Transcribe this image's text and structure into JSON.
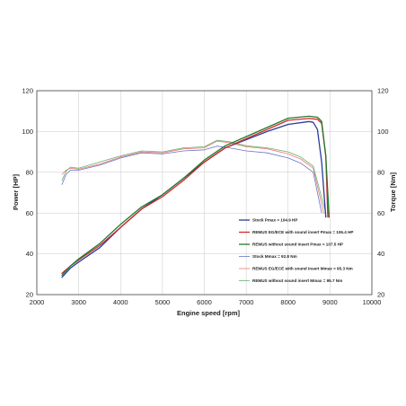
{
  "chart_data": {
    "type": "line",
    "xlabel": "Engine speed [rpm]",
    "ylabel_left": "Power [HP]",
    "ylabel_right": "Torque [Nm]",
    "xlim": [
      2000,
      10000
    ],
    "ylim": [
      20,
      120
    ],
    "x_ticks": [
      2000,
      3000,
      4000,
      5000,
      6000,
      7000,
      8000,
      9000,
      10000
    ],
    "y_ticks": [
      20,
      40,
      60,
      80,
      100,
      120
    ],
    "y2_ticks": [
      20,
      40,
      60,
      80,
      100,
      120
    ],
    "grid": true,
    "legend_position": "lower-right inside plot",
    "series": [
      {
        "name": "Stock Pmax = 104.9 HP",
        "color": "#2a3c9c",
        "kind": "power",
        "x": [
          2600,
          2800,
          3000,
          3500,
          4000,
          4500,
          5000,
          5500,
          6000,
          6500,
          7000,
          7500,
          8000,
          8500,
          8600,
          8700,
          8800,
          8900
        ],
        "y": [
          28.5,
          33,
          36,
          43,
          53,
          62,
          69,
          77,
          85,
          92,
          96,
          100,
          103.5,
          104.9,
          104.5,
          101,
          85,
          58
        ]
      },
      {
        "name": "REMUS EG/ECE with sound insert Pmax = 106.4 HP",
        "color": "#d42a2a",
        "kind": "power",
        "x": [
          2600,
          2800,
          3000,
          3500,
          4000,
          4500,
          5000,
          5500,
          6000,
          6500,
          7000,
          7500,
          8000,
          8500,
          8700,
          8800,
          8900,
          8950
        ],
        "y": [
          30.5,
          34,
          37,
          44,
          53,
          62,
          68,
          76,
          85,
          92,
          96.5,
          101,
          105.5,
          106.4,
          106,
          104,
          88,
          58
        ]
      },
      {
        "name": "REMUS without sound insert Pmax = 107.5 HP",
        "color": "#1f7a2c",
        "kind": "power",
        "x": [
          2600,
          2800,
          3000,
          3500,
          4000,
          4500,
          5000,
          5500,
          6000,
          6500,
          7000,
          7500,
          8000,
          8500,
          8700,
          8800,
          8900,
          8980
        ],
        "y": [
          29.5,
          34,
          37.5,
          45,
          54.5,
          63,
          69,
          77,
          86,
          93,
          97.5,
          102,
          106.5,
          107.5,
          107,
          105,
          88,
          58
        ]
      },
      {
        "name": "Stock Mmax = 92.8 Nm",
        "color": "#6b73c8",
        "kind": "torque",
        "x": [
          2600,
          2700,
          2800,
          3000,
          3500,
          4000,
          4500,
          5000,
          5500,
          6000,
          6300,
          6600,
          7000,
          7500,
          8000,
          8300,
          8600,
          8800
        ],
        "y": [
          74,
          79,
          81,
          81,
          83.5,
          87,
          89.5,
          89,
          90.5,
          91,
          92.8,
          92,
          90.5,
          89.5,
          87,
          84.5,
          80,
          60
        ]
      },
      {
        "name": "REMUS EG/ECE with sound insert Mmax = 95.3 Nm",
        "color": "#ea7a7a",
        "kind": "torque",
        "x": [
          2600,
          2700,
          2800,
          3000,
          3500,
          4000,
          4500,
          5000,
          5500,
          6000,
          6300,
          6600,
          7000,
          7500,
          8000,
          8300,
          8600,
          8850
        ],
        "y": [
          79,
          81,
          82,
          81.5,
          84,
          87.5,
          90,
          89.5,
          91.5,
          92,
          95.3,
          94.5,
          92.5,
          91.5,
          89,
          86.5,
          82,
          60
        ]
      },
      {
        "name": "REMUS without sound insert Mmax = 95.7 Nm",
        "color": "#66b066",
        "kind": "torque",
        "x": [
          2600,
          2700,
          2800,
          3000,
          3500,
          4000,
          4500,
          5000,
          5500,
          6000,
          6300,
          6600,
          7000,
          7500,
          8000,
          8300,
          8600,
          8900
        ],
        "y": [
          76,
          80.5,
          82.5,
          82,
          85,
          88,
          90.5,
          90,
          92,
          92.5,
          95.7,
          95,
          93,
          92,
          90,
          87.5,
          83,
          60
        ]
      }
    ]
  }
}
